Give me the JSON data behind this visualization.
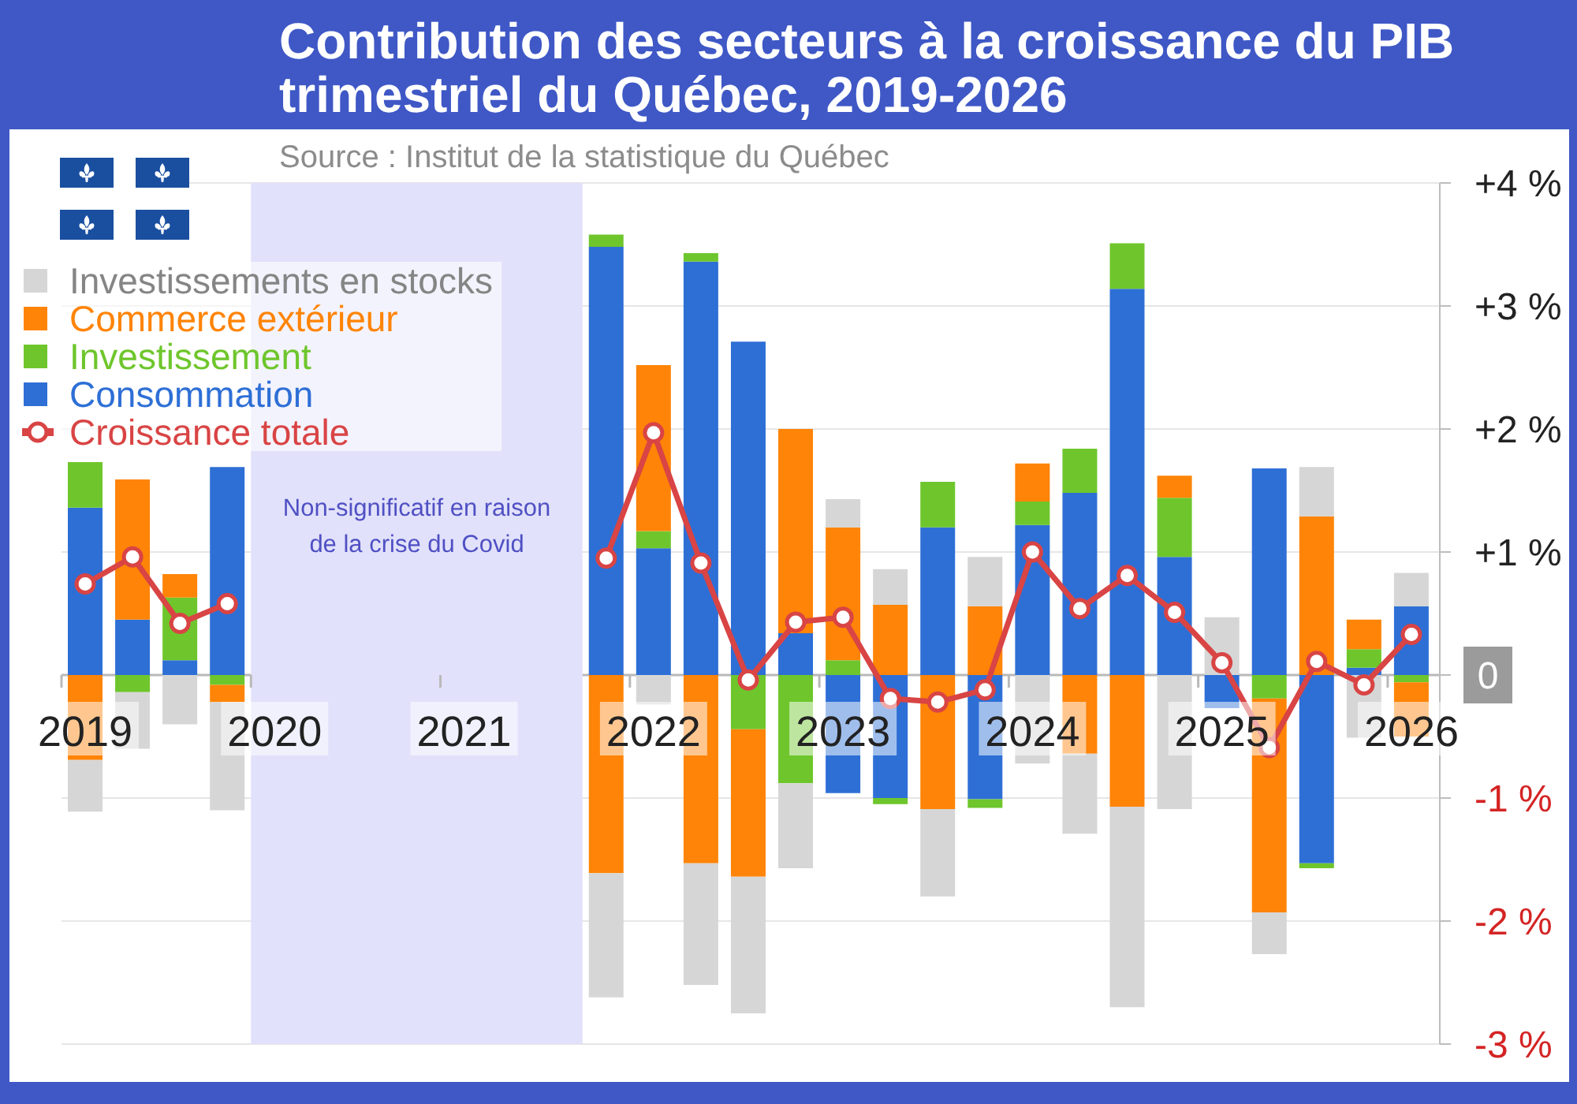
{
  "chart_data": {
    "type": "bar",
    "title": "Contribution des secteurs à la croissance du PIB trimestriel du Québec, 2019-2026",
    "annotations": [
      "Source : Institut de la statistique du Québec"
    ],
    "x": [
      2019,
      2019.25,
      2019.5,
      2019.75,
      2020,
      2020.25,
      2020.5,
      2020.75,
      2021,
      2021.25,
      2021.5,
      2021.75,
      2022,
      2022.25,
      2022.5,
      2022.75,
      2023,
      2023.25,
      2023.5,
      2023.75,
      2024,
      2024.25,
      2024.5,
      2024.75,
      2025,
      2025.25,
      2025.5,
      2025.75,
      2026
    ],
    "series": [
      {
        "name": "Consommation",
        "color": "#2e6fd6",
        "values": [
          1.36,
          0.45,
          0.12,
          1.69,
          null,
          null,
          null,
          null,
          null,
          null,
          null,
          3.48,
          1.03,
          3.36,
          2.71,
          0.34,
          -0.96,
          -1.0,
          1.2,
          -1.01,
          1.22,
          1.48,
          3.14,
          0.96,
          -0.27,
          1.68,
          -1.53,
          0.06,
          0.56
        ]
      },
      {
        "name": "Investissement",
        "color": "#6ec62c",
        "values": [
          0.37,
          -0.14,
          0.51,
          -0.08,
          null,
          null,
          null,
          null,
          null,
          null,
          null,
          0.1,
          0.14,
          0.07,
          -0.44,
          -0.88,
          0.12,
          -0.05,
          0.37,
          -0.07,
          0.19,
          0.36,
          0.37,
          0.48,
          null,
          -0.19,
          -0.04,
          0.15,
          -0.06
        ]
      },
      {
        "name": "Commerce extérieur",
        "color": "#ff8407",
        "values": [
          -0.69,
          1.14,
          0.19,
          -0.14,
          null,
          null,
          null,
          null,
          null,
          null,
          null,
          -1.61,
          1.35,
          -1.53,
          -1.2,
          1.66,
          1.08,
          0.57,
          -1.09,
          0.56,
          0.31,
          -0.64,
          -1.07,
          0.18,
          null,
          -1.74,
          1.29,
          0.24,
          -0.44
        ]
      },
      {
        "name": "Investissements en stocks",
        "color": "#d6d6d6",
        "values": [
          -0.42,
          -0.46,
          -0.4,
          -0.88,
          null,
          null,
          null,
          null,
          null,
          null,
          null,
          -1.01,
          -0.24,
          -0.99,
          -1.11,
          -0.69,
          0.23,
          0.29,
          -0.71,
          0.4,
          -0.72,
          -0.65,
          -1.63,
          -1.09,
          0.47,
          -0.34,
          0.4,
          -0.51,
          0.27
        ]
      },
      {
        "name": "Croissance totale",
        "type": "line",
        "color": "#d94444",
        "marker": "circle",
        "values": [
          0.74,
          0.96,
          0.42,
          0.58,
          null,
          null,
          null,
          null,
          null,
          null,
          null,
          0.95,
          1.97,
          0.91,
          -0.04,
          0.43,
          0.47,
          -0.19,
          -0.22,
          -0.12,
          1.0,
          0.54,
          0.81,
          0.51,
          0.1,
          -0.59,
          0.11,
          -0.08,
          0.33
        ]
      }
    ],
    "stacked": true,
    "xlim": [
      2018.875,
      2026.15
    ],
    "xticks": [
      {
        "value": 2018.875,
        "label": null
      },
      2019,
      {
        "value": 2019.875,
        "label": null
      },
      2020,
      {
        "value": 2020.875,
        "label": null
      },
      2021,
      {
        "value": 2021.875,
        "label": null
      },
      2022,
      {
        "value": 2022.875,
        "label": null
      },
      2023,
      {
        "value": 2023.875,
        "label": null
      },
      2024,
      {
        "value": 2024.875,
        "label": null
      },
      2025,
      {
        "value": 2025.875,
        "label": null
      },
      2026
    ],
    "ylim": [
      -3,
      4
    ],
    "yticks": [
      {
        "value": 4,
        "label": "+4 %"
      },
      {
        "value": 3,
        "label": "+3 %"
      },
      {
        "value": 2,
        "label": "+2 %"
      },
      {
        "value": 1,
        "label": "+1 %"
      },
      0,
      {
        "value": -1,
        "label": "-1 %"
      },
      {
        "value": -2,
        "label": "-2 %"
      },
      {
        "value": -3,
        "label": "-3 %"
      }
    ],
    "bands": [
      {
        "axis": "x",
        "from": 2019.875,
        "to": 2021.625,
        "label": "Non-significatif en raison\nde la crise du Covid",
        "color": "#e1e1fb"
      }
    ],
    "grid": "y",
    "legend": "top left"
  }
}
